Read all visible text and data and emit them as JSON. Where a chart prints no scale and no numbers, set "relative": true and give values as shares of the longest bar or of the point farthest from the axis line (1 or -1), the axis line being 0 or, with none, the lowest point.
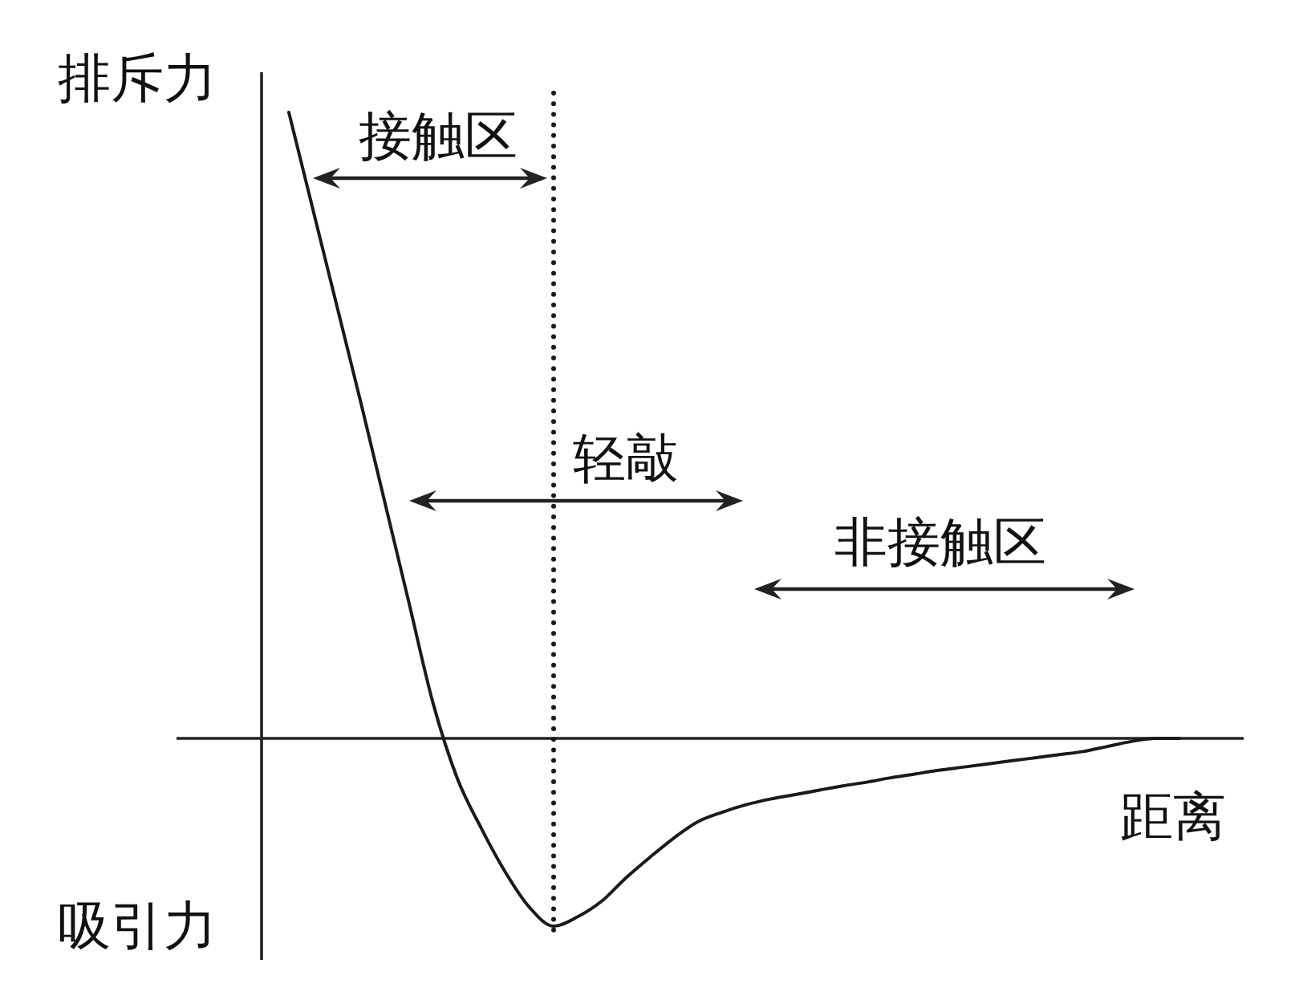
{
  "chart_data": {
    "type": "line",
    "relative": true,
    "xlabel": "距离",
    "ylabel": "排斥力",
    "annotations": [
      "接触区",
      "轻敲",
      "非接触区",
      "吸引力"
    ],
    "categories": [
      null,
      null,
      null,
      null,
      null,
      null,
      null,
      null,
      null,
      null,
      null,
      null,
      null,
      null,
      null,
      null,
      null,
      null,
      null,
      null,
      null,
      null,
      null,
      null,
      null,
      null,
      null,
      null,
      null,
      null,
      null,
      null,
      null,
      null,
      null,
      null,
      null,
      null
    ],
    "series": [
      {
        "color": "#1a1a1a",
        "values": [
          1.0,
          0.845,
          0.69,
          0.535,
          0.375,
          0.215,
          0.055,
          -0.064,
          -0.144,
          -0.214,
          -0.27,
          -0.3,
          -0.285,
          -0.26,
          -0.223,
          -0.19,
          -0.159,
          -0.133,
          -0.118,
          -0.106,
          -0.097,
          -0.09,
          -0.083,
          -0.076,
          -0.07,
          -0.063,
          -0.057,
          -0.051,
          -0.046,
          -0.041,
          -0.036,
          -0.031,
          -0.026,
          -0.021,
          -0.013,
          -0.005,
          0,
          0
        ]
      }
    ]
  }
}
